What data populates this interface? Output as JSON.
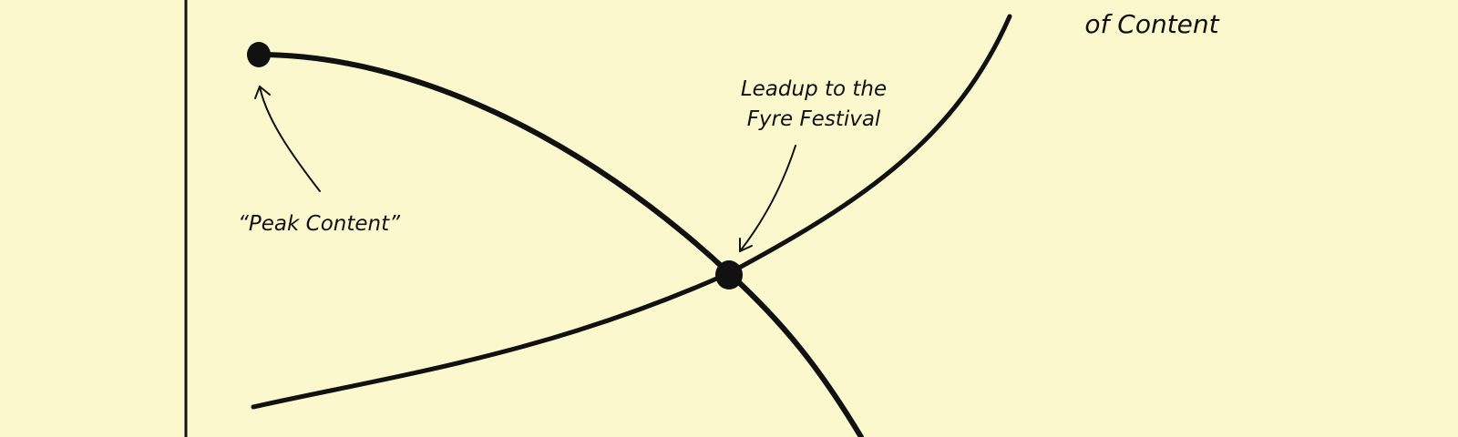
{
  "colors": {
    "background": "#fcf8cd",
    "ink": "#111111"
  },
  "annotations": {
    "peak_content": "“Peak Content”",
    "leadup_line1": "Leadup to the",
    "leadup_line2": "Fyre Festival",
    "rising_curve_line2": "of Content"
  }
}
